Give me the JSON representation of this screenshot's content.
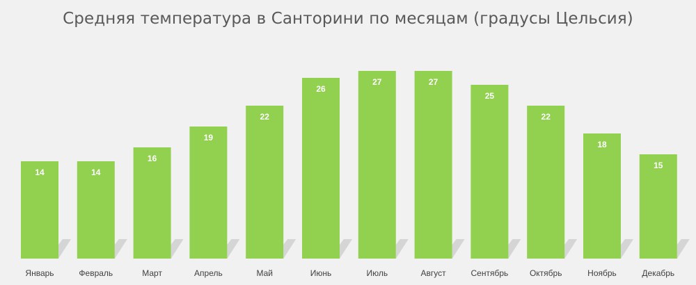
{
  "chart_data": {
    "type": "bar",
    "title": "Средняя температура в Санторини по месяцам (градусы Цельсия)",
    "xlabel": "",
    "ylabel": "",
    "ylim": [
      0,
      30
    ],
    "categories": [
      "Январь",
      "Февраль",
      "Март",
      "Апрель",
      "Май",
      "Июнь",
      "Июль",
      "Август",
      "Сентябрь",
      "Октябрь",
      "Ноябрь",
      "Декабрь"
    ],
    "values": [
      14,
      14,
      16,
      19,
      22,
      26,
      27,
      27,
      25,
      22,
      18,
      15
    ],
    "data_labels": [
      "14",
      "14",
      "16",
      "19",
      "22",
      "26",
      "27",
      "27",
      "25",
      "22",
      "18",
      "15"
    ],
    "grid": false,
    "legend": "none",
    "colors": {
      "bar": "#92d050",
      "background": "#f1f1f1",
      "title": "#595959",
      "value_label": "#ffffff",
      "category_label": "#404040"
    }
  }
}
